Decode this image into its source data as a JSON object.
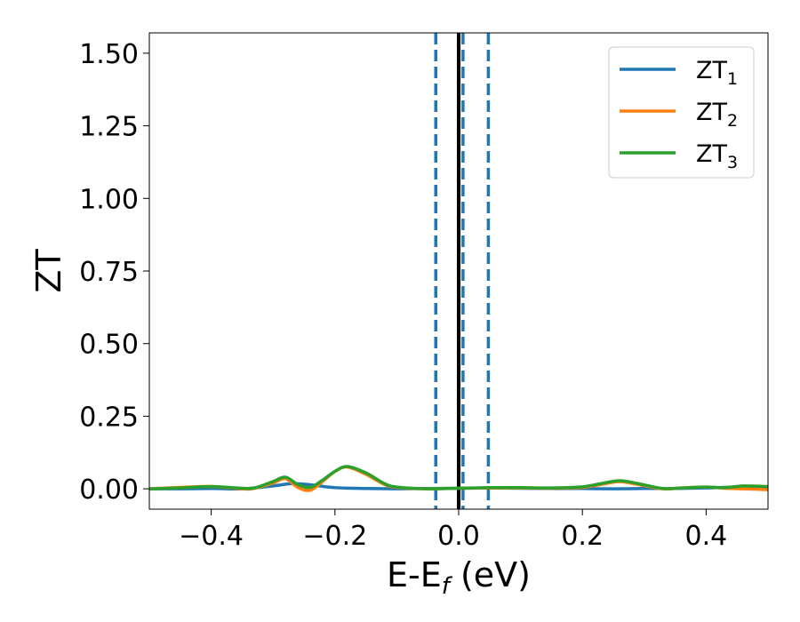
{
  "chart_data": {
    "type": "line",
    "xlabel": "E-E",
    "xlabel_sub": "f",
    "xlabel_unit": " (eV)",
    "ylabel": "ZT",
    "xlim": [
      -0.5,
      0.5
    ],
    "ylim": [
      -0.07,
      1.57
    ],
    "xticks": [
      -0.4,
      -0.2,
      0.0,
      0.2,
      0.4
    ],
    "xtick_labels": [
      "−0.4",
      "−0.2",
      "0.0",
      "0.2",
      "0.4"
    ],
    "yticks": [
      0.0,
      0.25,
      0.5,
      0.75,
      1.0,
      1.25,
      1.5
    ],
    "ytick_labels": [
      "0.00",
      "0.25",
      "0.50",
      "0.75",
      "1.00",
      "1.25",
      "1.50"
    ],
    "legend": {
      "placement": "top-right"
    },
    "vlines": [
      {
        "x": 0.0,
        "style": "solid",
        "color": "#000000"
      },
      {
        "x": -0.037,
        "style": "dashed",
        "color": "#1f77b4"
      },
      {
        "x": 0.007,
        "style": "dashed",
        "color": "#1f77b4"
      },
      {
        "x": 0.048,
        "style": "dashed",
        "color": "#1f77b4"
      }
    ],
    "series": [
      {
        "name": "ZT",
        "name_sub": "1",
        "color": "#1f77b4",
        "x": [
          -0.5,
          -0.45,
          -0.4,
          -0.35,
          -0.3,
          -0.27,
          -0.24,
          -0.2,
          -0.15,
          -0.1,
          -0.05,
          0.0,
          0.05,
          0.1,
          0.15,
          0.2,
          0.25,
          0.3,
          0.35,
          0.4,
          0.45,
          0.5
        ],
        "y": [
          0.0,
          0.0,
          0.001,
          0.0,
          0.01,
          0.018,
          0.014,
          0.004,
          0.001,
          0.0,
          0.001,
          0.002,
          0.003,
          0.002,
          0.001,
          0.001,
          0.0,
          0.001,
          0.001,
          0.003,
          0.006,
          0.005
        ]
      },
      {
        "name": "ZT",
        "name_sub": "2",
        "color": "#ff7f0e",
        "x": [
          -0.5,
          -0.45,
          -0.4,
          -0.35,
          -0.33,
          -0.3,
          -0.28,
          -0.26,
          -0.24,
          -0.22,
          -0.2,
          -0.18,
          -0.15,
          -0.12,
          -0.1,
          -0.05,
          0.0,
          0.05,
          0.1,
          0.15,
          0.2,
          0.23,
          0.26,
          0.29,
          0.33,
          0.36,
          0.4,
          0.43,
          0.46,
          0.5
        ],
        "y": [
          0.0,
          0.005,
          0.008,
          0.0,
          0.002,
          0.02,
          0.035,
          0.005,
          -0.005,
          0.025,
          0.06,
          0.075,
          0.05,
          0.015,
          0.005,
          0.0,
          0.002,
          0.003,
          0.003,
          0.002,
          0.005,
          0.015,
          0.025,
          0.015,
          0.0,
          0.003,
          0.006,
          0.002,
          0.0,
          -0.003
        ]
      },
      {
        "name": "ZT",
        "name_sub": "3",
        "color": "#2ca02c",
        "x": [
          -0.5,
          -0.45,
          -0.4,
          -0.35,
          -0.33,
          -0.3,
          -0.28,
          -0.26,
          -0.24,
          -0.22,
          -0.2,
          -0.18,
          -0.15,
          -0.12,
          -0.1,
          -0.05,
          0.0,
          0.05,
          0.1,
          0.15,
          0.2,
          0.23,
          0.26,
          0.29,
          0.33,
          0.36,
          0.4,
          0.43,
          0.46,
          0.5
        ],
        "y": [
          0.0,
          0.003,
          0.008,
          0.002,
          0.003,
          0.025,
          0.04,
          0.015,
          0.005,
          0.03,
          0.06,
          0.077,
          0.055,
          0.018,
          0.006,
          0.0,
          0.002,
          0.004,
          0.004,
          0.003,
          0.007,
          0.018,
          0.028,
          0.018,
          0.001,
          0.003,
          0.006,
          0.004,
          0.01,
          0.008
        ]
      }
    ]
  }
}
